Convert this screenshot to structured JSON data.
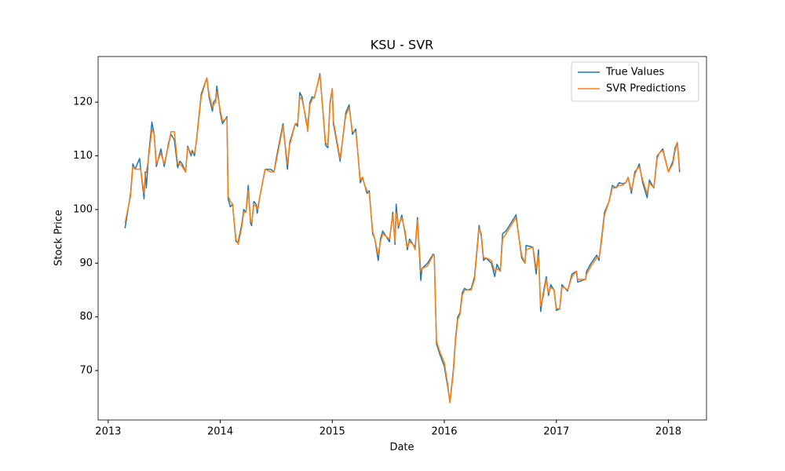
{
  "chart_data": {
    "type": "line",
    "title": "KSU - SVR",
    "xlabel": "Date",
    "ylabel": "Stock Price",
    "x": [
      2013.15,
      2013.2,
      2013.22,
      2013.24,
      2013.28,
      2013.29,
      2013.32,
      2013.33,
      2013.34,
      2013.36,
      2013.39,
      2013.41,
      2013.43,
      2013.47,
      2013.5,
      2013.54,
      2013.56,
      2013.59,
      2013.62,
      2013.64,
      2013.66,
      2013.69,
      2013.71,
      2013.74,
      2013.75,
      2013.77,
      2013.79,
      2013.83,
      2013.88,
      2013.9,
      2013.93,
      2013.94,
      2013.96,
      2013.97,
      2014.0,
      2014.02,
      2014.06,
      2014.07,
      2014.09,
      2014.11,
      2014.14,
      2014.16,
      2014.19,
      2014.21,
      2014.23,
      2014.25,
      2014.27,
      2014.28,
      2014.3,
      2014.32,
      2014.33,
      2014.35,
      2014.4,
      2014.45,
      2014.48,
      2014.5,
      2014.56,
      2014.6,
      2014.62,
      2014.67,
      2014.69,
      2014.71,
      2014.73,
      2014.77,
      2014.78,
      2014.8,
      2014.82,
      2014.84,
      2014.89,
      2014.94,
      2014.96,
      2014.98,
      2015.0,
      2015.01,
      2015.07,
      2015.12,
      2015.15,
      2015.18,
      2015.21,
      2015.25,
      2015.27,
      2015.29,
      2015.31,
      2015.33,
      2015.36,
      2015.38,
      2015.41,
      2015.43,
      2015.45,
      2015.48,
      2015.51,
      2015.54,
      2015.56,
      2015.57,
      2015.59,
      2015.62,
      2015.65,
      2015.67,
      2015.69,
      2015.72,
      2015.74,
      2015.76,
      2015.79,
      2015.8,
      2015.85,
      2015.9,
      2015.91,
      2015.93,
      2015.96,
      2016.0,
      2016.03,
      2016.05,
      2016.08,
      2016.1,
      2016.12,
      2016.14,
      2016.16,
      2016.18,
      2016.21,
      2016.24,
      2016.27,
      2016.31,
      2016.33,
      2016.35,
      2016.37,
      2016.42,
      2016.45,
      2016.47,
      2016.5,
      2016.52,
      2016.55,
      2016.64,
      2016.69,
      2016.72,
      2016.73,
      2016.79,
      2016.82,
      2016.84,
      2016.86,
      2016.88,
      2016.91,
      2016.93,
      2016.95,
      2016.98,
      2017.0,
      2017.03,
      2017.05,
      2017.07,
      2017.1,
      2017.14,
      2017.18,
      2017.19,
      2017.26,
      2017.27,
      2017.31,
      2017.36,
      2017.38,
      2017.4,
      2017.43,
      2017.47,
      2017.5,
      2017.53,
      2017.56,
      2017.59,
      2017.62,
      2017.64,
      2017.67,
      2017.7,
      2017.72,
      2017.74,
      2017.77,
      2017.81,
      2017.83,
      2017.87,
      2017.9,
      2017.92,
      2017.95,
      2018.0,
      2018.04,
      2018.06,
      2018.08,
      2018.1
    ],
    "series": [
      {
        "name": "True Values",
        "color": "#1f77b4",
        "values": [
          96.5,
          103,
          108.5,
          107.5,
          109.5,
          107.5,
          102,
          107,
          104,
          110,
          116.3,
          114,
          108,
          111.3,
          108,
          112.5,
          114,
          113,
          107.8,
          109,
          108.5,
          107,
          111.8,
          110,
          111,
          110,
          113.3,
          121.5,
          124.5,
          121,
          118.3,
          120,
          120.5,
          123,
          118,
          116,
          117.3,
          102,
          100.5,
          101,
          94,
          94,
          97,
          100,
          99.5,
          104.5,
          97.5,
          97,
          101.5,
          101,
          99.3,
          102,
          107.5,
          107.5,
          107,
          109.5,
          116,
          107.5,
          112.5,
          116,
          115.5,
          121.8,
          121,
          116,
          115,
          120,
          121,
          120.8,
          125.3,
          112,
          111.5,
          120,
          122.5,
          116,
          109,
          118,
          119.5,
          114,
          115,
          105,
          106,
          104.5,
          103,
          103.5,
          95.5,
          94.5,
          90.5,
          94.5,
          96,
          95,
          94,
          99.5,
          93.5,
          101,
          96.5,
          99,
          95.5,
          92.5,
          94.5,
          93.5,
          93,
          98.5,
          86.8,
          89,
          90,
          91.7,
          91.5,
          75,
          73,
          70.8,
          67,
          64.2,
          70,
          76,
          80,
          80.8,
          84.5,
          85.3,
          85,
          85.3,
          87.5,
          97,
          95,
          90.5,
          91,
          90,
          87.5,
          89.8,
          88.5,
          95.5,
          96,
          99,
          91,
          90,
          93.3,
          93,
          88,
          92.5,
          81,
          84,
          87.5,
          84,
          86,
          85,
          81.2,
          81.5,
          86,
          85.5,
          84.8,
          88,
          88.5,
          86.5,
          87,
          88.5,
          90,
          91.5,
          90.5,
          94,
          99.5,
          101.5,
          104.5,
          104,
          105,
          104.8,
          105,
          106,
          103,
          107,
          107.5,
          108.5,
          105,
          102.2,
          105.5,
          104,
          110,
          110.5,
          111.3,
          107,
          109,
          111.5,
          112.5,
          107
        ]
      },
      {
        "name": "SVR Predictions",
        "color": "#ff7f0e",
        "values": [
          97.5,
          102.5,
          108,
          107.5,
          107.5,
          107.5,
          103,
          106.5,
          107,
          109.5,
          115,
          114,
          108.5,
          110.5,
          108.5,
          112,
          114.5,
          114.5,
          108.5,
          108.5,
          108,
          107,
          111.5,
          110.5,
          110.5,
          110.5,
          113,
          121,
          124.5,
          121.5,
          119,
          119.5,
          120,
          122,
          118.5,
          116.5,
          117,
          102.5,
          101.5,
          101,
          94.5,
          93.5,
          96.5,
          99.5,
          99.5,
          103.5,
          98,
          97.5,
          101,
          100.5,
          100,
          102,
          107.5,
          107,
          107,
          109,
          115.5,
          108.5,
          112,
          116,
          116,
          121,
          120.5,
          116.5,
          114.5,
          119.5,
          120.5,
          121,
          125,
          112.5,
          112,
          119.5,
          122.5,
          116.5,
          109.5,
          117.5,
          119,
          114.5,
          114.5,
          105.5,
          106,
          104.5,
          103.5,
          103,
          96,
          94.5,
          91.5,
          94,
          95.5,
          95,
          94.5,
          99,
          94,
          99.5,
          97,
          98.5,
          96,
          93,
          94,
          93.5,
          92.5,
          98,
          88.5,
          89,
          89.5,
          91.5,
          91.5,
          75.5,
          73.5,
          71.5,
          67.5,
          64,
          69.5,
          75.5,
          79.5,
          80.5,
          84,
          85,
          85,
          85,
          87,
          96.5,
          95.5,
          91,
          91,
          90.5,
          88.5,
          89,
          88.5,
          94.5,
          95.5,
          98.5,
          91.5,
          90,
          92.5,
          93,
          89,
          91.5,
          82,
          83.5,
          87,
          84.5,
          85.5,
          85,
          81.5,
          81.5,
          85.5,
          85.5,
          85,
          87.5,
          88.5,
          87,
          87,
          88,
          89.5,
          91,
          91,
          93.5,
          99,
          101.5,
          104,
          104,
          104.5,
          104.5,
          105,
          106,
          103.5,
          106.5,
          107.5,
          108,
          105.5,
          103,
          105,
          104,
          109.5,
          110.5,
          111,
          107,
          108.5,
          111,
          112.5,
          107.5
        ]
      }
    ],
    "xlim": [
      2012.91,
      2018.34
    ],
    "xticks": [
      2013,
      2014,
      2015,
      2016,
      2017,
      2018
    ],
    "ylim": [
      60.8,
      128.5
    ],
    "yticks": [
      70,
      80,
      90,
      100,
      110,
      120
    ],
    "legend": "upper right"
  }
}
